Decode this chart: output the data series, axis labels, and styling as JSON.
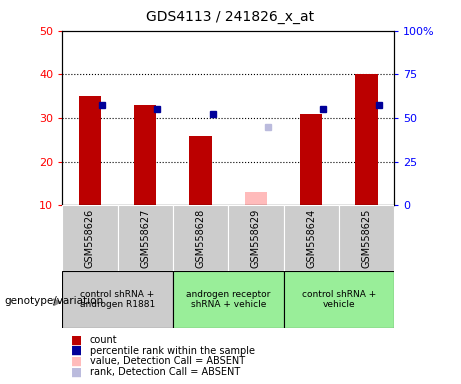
{
  "title": "GDS4113 / 241826_x_at",
  "samples": [
    "GSM558626",
    "GSM558627",
    "GSM558628",
    "GSM558629",
    "GSM558624",
    "GSM558625"
  ],
  "count_values": [
    35,
    33,
    26,
    null,
    31,
    40
  ],
  "rank_values": [
    33,
    32,
    31,
    null,
    32,
    33
  ],
  "absent_value": [
    null,
    null,
    null,
    13,
    null,
    null
  ],
  "absent_rank": [
    null,
    null,
    null,
    28,
    null,
    null
  ],
  "ylim_left": [
    10,
    50
  ],
  "ylim_right": [
    0,
    100
  ],
  "yticks_left": [
    10,
    20,
    30,
    40,
    50
  ],
  "yticks_right": [
    0,
    25,
    50,
    75,
    100
  ],
  "yticklabels_right": [
    "0",
    "25",
    "50",
    "75",
    "100%"
  ],
  "count_color": "#bb0000",
  "rank_color": "#000099",
  "absent_value_color": "#ffbbbb",
  "absent_rank_color": "#bbbbdd",
  "group_colors_samples": [
    "#cccccc",
    "#cccccc",
    "#cccccc",
    "#cccccc",
    "#cccccc",
    "#cccccc"
  ],
  "groups": [
    {
      "label": "control shRNA +\nandrogen R1881",
      "start": 0,
      "end": 1,
      "color": "#cccccc"
    },
    {
      "label": "androgen receptor\nshRNA + vehicle",
      "start": 2,
      "end": 3,
      "color": "#99ee99"
    },
    {
      "label": "control shRNA +\nvehicle",
      "start": 4,
      "end": 5,
      "color": "#99ee99"
    }
  ],
  "legend_items": [
    {
      "label": "count",
      "color": "#bb0000"
    },
    {
      "label": "percentile rank within the sample",
      "color": "#000099"
    },
    {
      "label": "value, Detection Call = ABSENT",
      "color": "#ffbbbb"
    },
    {
      "label": "rank, Detection Call = ABSENT",
      "color": "#bbbbdd"
    }
  ],
  "xlabel_genotype": "genotype/variation",
  "dotted_yticks": [
    20,
    30,
    40
  ],
  "bar_width": 0.4
}
